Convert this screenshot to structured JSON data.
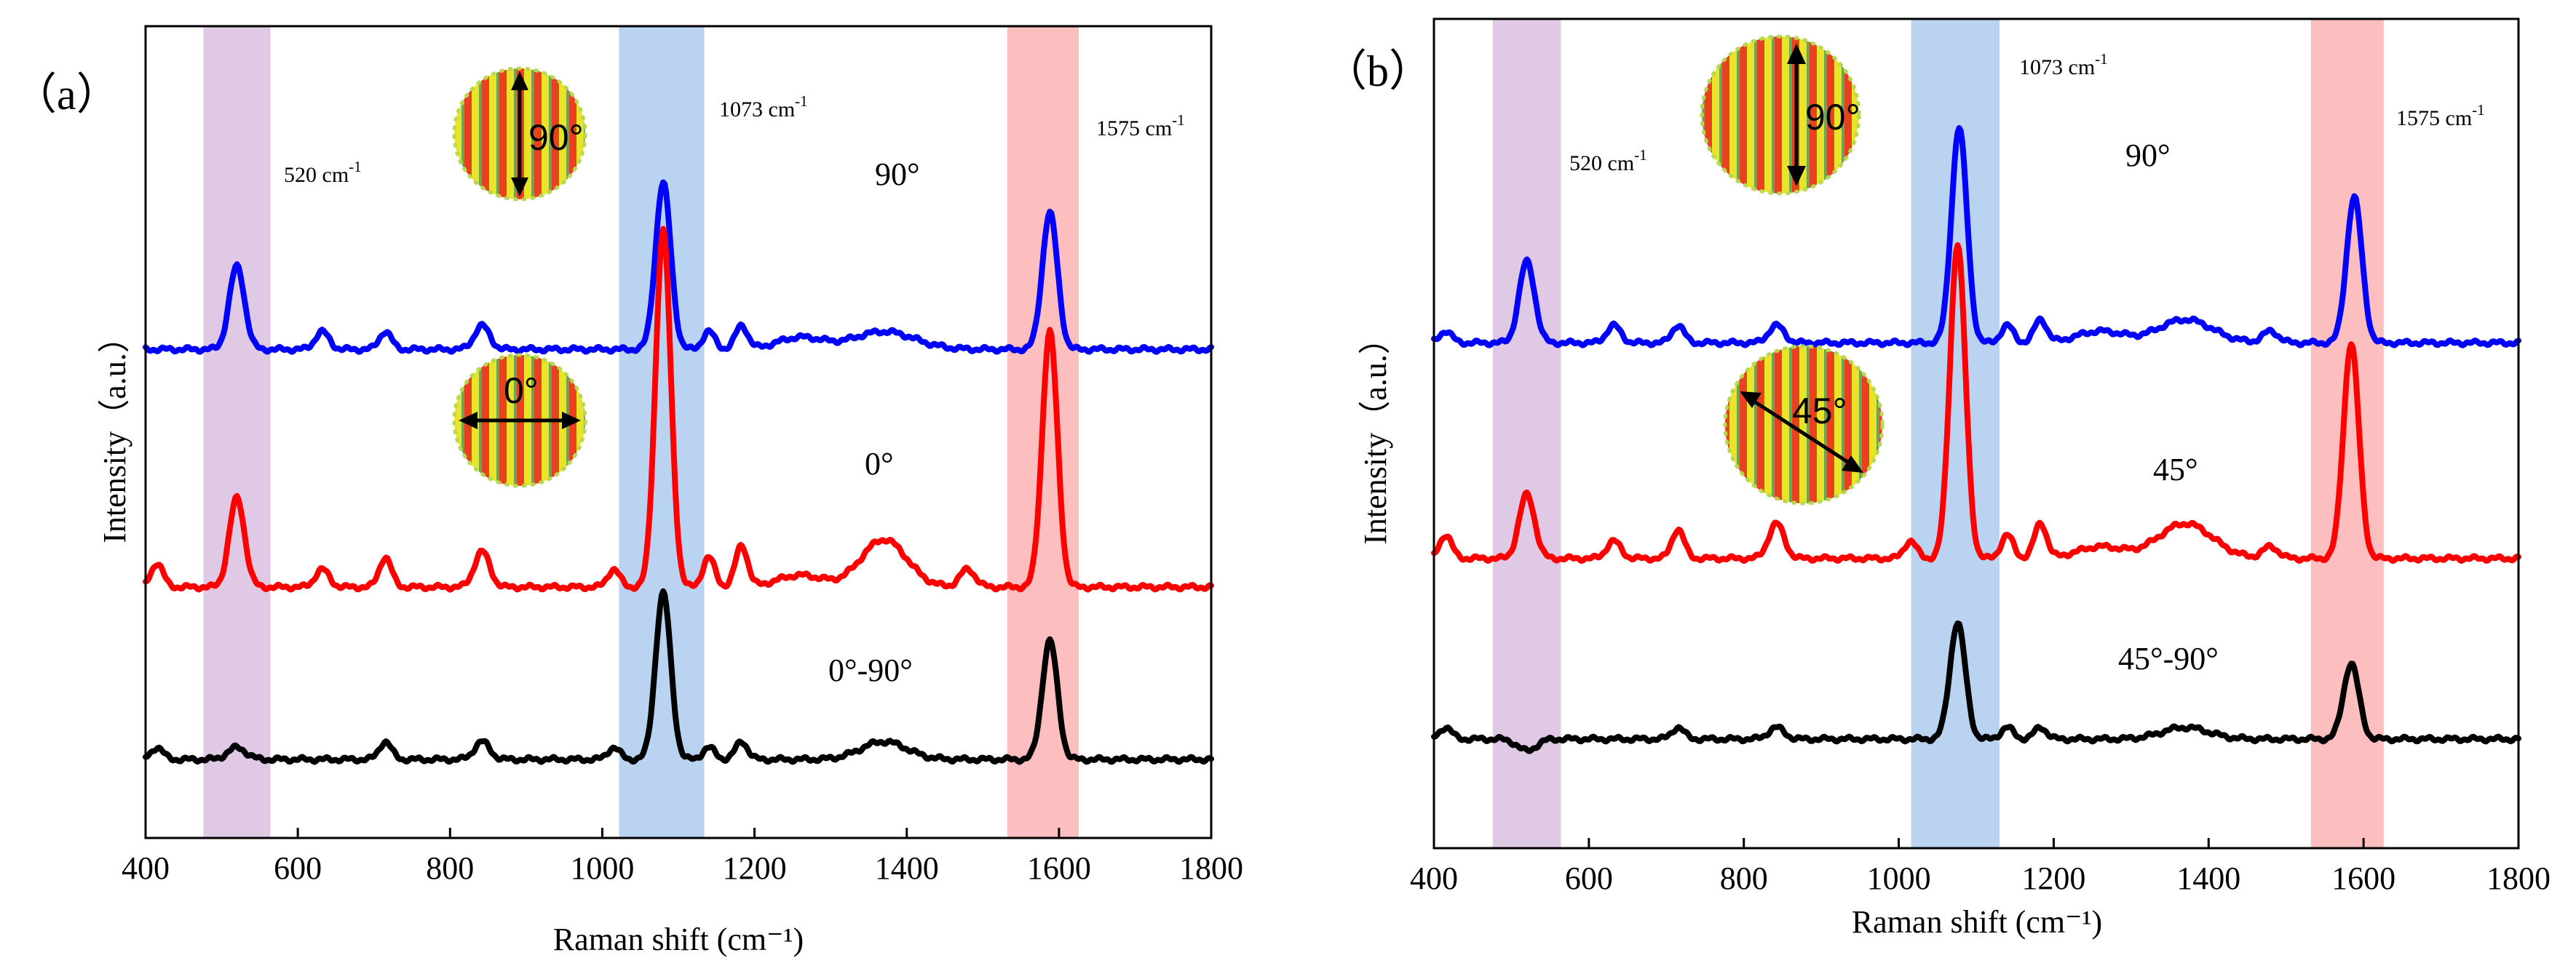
{
  "chart_data": [
    {
      "type": "line",
      "panel_label": "（a）",
      "xlabel": "Raman shift (cm⁻¹)",
      "ylabel": "Intensity（a.u.）",
      "xlim": [
        400,
        1800
      ],
      "xticks": [
        "400",
        "600",
        "800",
        "1000",
        "1200",
        "1400",
        "1600",
        "1800"
      ],
      "yticks_shown": false,
      "bands": [
        {
          "name": "520 band",
          "x_range": [
            476,
            564
          ],
          "color": "#d9bfe1"
        },
        {
          "name": "1073 band",
          "x_range": [
            1022,
            1134
          ],
          "color": "#aecbee"
        },
        {
          "name": "1575 band",
          "x_range": [
            1532,
            1626
          ],
          "color": "#fbb3b3"
        }
      ],
      "peak_labels": [
        "520 cm",
        "1073 cm",
        "1575 cm"
      ],
      "peak_label_sup": "-1",
      "polarization_icons": [
        {
          "text": "90°",
          "arrow": "vertical"
        },
        {
          "text": "0°",
          "arrow": "horizontal"
        }
      ],
      "series": [
        {
          "name": "90°",
          "color": "#0000ff",
          "baseline": 74,
          "peaks": [
            [
              520,
              14,
              10
            ],
            [
              632,
              3,
              9
            ],
            [
              715,
              3,
              8
            ],
            [
              842,
              4,
              10
            ],
            [
              1080,
              28,
              10
            ],
            [
              1140,
              3,
              8
            ],
            [
              1183,
              4,
              8
            ],
            [
              1260,
              2,
              30
            ],
            [
              1370,
              3,
              40
            ],
            [
              1588,
              23,
              10
            ]
          ]
        },
        {
          "name": "0°",
          "color": "#ff0000",
          "baseline": 34,
          "peaks": [
            [
              415,
              4,
              8
            ],
            [
              520,
              15,
              10
            ],
            [
              632,
              3,
              9
            ],
            [
              715,
              5,
              8
            ],
            [
              842,
              6,
              10
            ],
            [
              1015,
              3,
              8
            ],
            [
              1080,
              60,
              10
            ],
            [
              1140,
              5,
              8
            ],
            [
              1183,
              7,
              8
            ],
            [
              1260,
              2,
              30
            ],
            [
              1370,
              8,
              30
            ],
            [
              1480,
              3,
              10
            ],
            [
              1588,
              43,
              10
            ]
          ]
        },
        {
          "name": "0°-90°",
          "color": "#000000",
          "baseline": 5,
          "peaks": [
            [
              415,
              2,
              8
            ],
            [
              520,
              2,
              12
            ],
            [
              715,
              3,
              8
            ],
            [
              842,
              3,
              10
            ],
            [
              1015,
              2,
              8
            ],
            [
              1080,
              28,
              10
            ],
            [
              1140,
              2,
              8
            ],
            [
              1183,
              3,
              8
            ],
            [
              1370,
              3,
              30
            ],
            [
              1588,
              20,
              10
            ]
          ]
        }
      ]
    },
    {
      "type": "line",
      "panel_label": "（b）",
      "xlabel": "Raman shift (cm⁻¹)",
      "ylabel": "Intensity（a.u.）",
      "xlim": [
        400,
        1800
      ],
      "xticks": [
        "400",
        "600",
        "800",
        "1000",
        "1200",
        "1400",
        "1600",
        "1800"
      ],
      "yticks_shown": false,
      "bands": [
        {
          "name": "520 band",
          "x_range": [
            476,
            564
          ],
          "color": "#d9bfe1"
        },
        {
          "name": "1073 band",
          "x_range": [
            1016,
            1130
          ],
          "color": "#aecbee"
        },
        {
          "name": "1575 band",
          "x_range": [
            1532,
            1626
          ],
          "color": "#fbb3b3"
        }
      ],
      "peak_labels": [
        "520 cm",
        "1073 cm",
        "1575 cm"
      ],
      "peak_label_sup": "-1",
      "polarization_icons": [
        {
          "text": "90°",
          "arrow": "vertical"
        },
        {
          "text": "45°",
          "arrow": "diagonal"
        }
      ],
      "series": [
        {
          "name": "90°",
          "color": "#0000ff",
          "baseline": 71,
          "peaks": [
            [
              415,
              2,
              8
            ],
            [
              520,
              14,
              10
            ],
            [
              632,
              3,
              9
            ],
            [
              715,
              3,
              8
            ],
            [
              842,
              3,
              10
            ],
            [
              1078,
              37,
              10
            ],
            [
              1140,
              3,
              8
            ],
            [
              1183,
              4,
              8
            ],
            [
              1260,
              2,
              30
            ],
            [
              1370,
              4,
              35
            ],
            [
              1480,
              2,
              10
            ],
            [
              1588,
              25,
              10
            ]
          ]
        },
        {
          "name": "45°",
          "color": "#ff0000",
          "baseline": 34,
          "peaks": [
            [
              415,
              4,
              8
            ],
            [
              520,
              11,
              10
            ],
            [
              632,
              3,
              9
            ],
            [
              715,
              5,
              8
            ],
            [
              842,
              6,
              10
            ],
            [
              1015,
              3,
              8
            ],
            [
              1076,
              54,
              10
            ],
            [
              1140,
              4,
              8
            ],
            [
              1183,
              6,
              8
            ],
            [
              1260,
              2,
              30
            ],
            [
              1370,
              6,
              35
            ],
            [
              1480,
              2,
              10
            ],
            [
              1584,
              37,
              10
            ]
          ]
        },
        {
          "name": "45°-90°",
          "color": "#000000",
          "baseline": 3,
          "peaks": [
            [
              415,
              2,
              8
            ],
            [
              520,
              -2,
              12
            ],
            [
              715,
              2,
              8
            ],
            [
              842,
              2,
              10
            ],
            [
              1076,
              20,
              10
            ],
            [
              1140,
              2,
              8
            ],
            [
              1183,
              2,
              8
            ],
            [
              1370,
              2,
              30
            ],
            [
              1584,
              13,
              10
            ]
          ]
        }
      ]
    }
  ]
}
